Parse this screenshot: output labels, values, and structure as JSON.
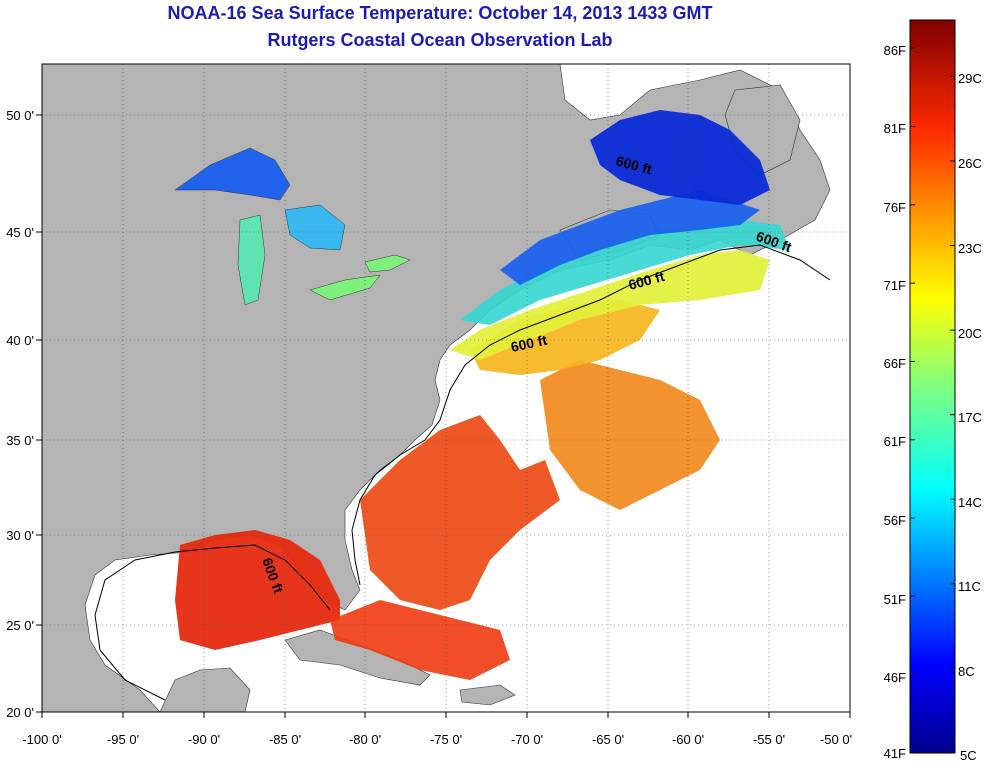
{
  "title": {
    "line1": "NOAA-16 Sea Surface Temperature:  October 14, 2013 1433 GMT",
    "line2": "Rutgers Coastal Ocean Observation Lab"
  },
  "map": {
    "lon_range": [
      -100,
      -50
    ],
    "lat_range": [
      20,
      52
    ],
    "lon_ticks": [
      {
        "value": -100,
        "label": "-100 0'"
      },
      {
        "value": -95,
        "label": "-95 0'"
      },
      {
        "value": -90,
        "label": "-90 0'"
      },
      {
        "value": -85,
        "label": "-85 0'"
      },
      {
        "value": -80,
        "label": "-80 0'"
      },
      {
        "value": -75,
        "label": "-75 0'"
      },
      {
        "value": -70,
        "label": "-70 0'"
      },
      {
        "value": -65,
        "label": "-65 0'"
      },
      {
        "value": -60,
        "label": "-60 0'"
      },
      {
        "value": -55,
        "label": "-55 0'"
      },
      {
        "value": -50,
        "label": "-50 0'"
      }
    ],
    "lat_ticks": [
      {
        "value": 20,
        "label": "20 0'"
      },
      {
        "value": 25,
        "label": "25 0'"
      },
      {
        "value": 30,
        "label": "30 0'"
      },
      {
        "value": 35,
        "label": "35 0'"
      },
      {
        "value": 40,
        "label": "40 0'"
      },
      {
        "value": 45,
        "label": "45 0'"
      },
      {
        "value": 50,
        "label": "50 0'"
      }
    ],
    "contour_labels": [
      "600 ft",
      "600 ft",
      "600 ft",
      "600 ft",
      "600 ft"
    ],
    "colors": {
      "land": "#b4b4b4",
      "ocean_nodata": "#ffffff"
    }
  },
  "colorbar": {
    "range_c": [
      5,
      31
    ],
    "fahrenheit_labels": [
      "41F",
      "46F",
      "51F",
      "56F",
      "61F",
      "66F",
      "71F",
      "76F",
      "81F",
      "86F"
    ],
    "celsius_labels": [
      "5C",
      "8C",
      "11C",
      "14C",
      "17C",
      "20C",
      "23C",
      "26C",
      "29C"
    ]
  }
}
